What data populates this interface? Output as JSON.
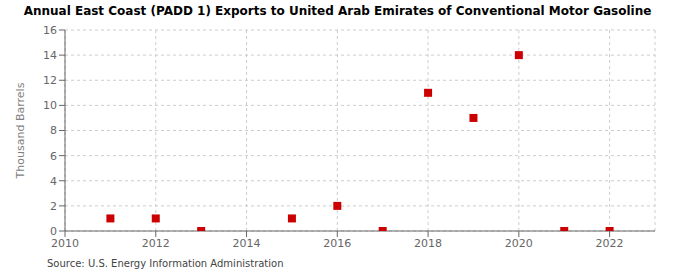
{
  "chart_data": {
    "type": "scatter",
    "title": "Annual East Coast (PADD 1) Exports to United Arab Emirates of Conventional Motor Gasoline",
    "ylabel": "Thousand Barrels",
    "annotations": [
      "Source: U.S. Energy Information Administration"
    ],
    "x": [
      2011,
      2012,
      2013,
      2015,
      2016,
      2017,
      2018,
      2019,
      2020,
      2021,
      2022
    ],
    "values": [
      1,
      1,
      0,
      1,
      2,
      0,
      11,
      9,
      14,
      0,
      0
    ],
    "color": "#cc0000",
    "marker": "square",
    "xlim": [
      2010,
      2023
    ],
    "xticks": [
      2010,
      2012,
      2014,
      2016,
      2018,
      2020,
      2022
    ],
    "ylim": [
      0,
      16
    ],
    "yticks": [
      0,
      2,
      4,
      6,
      8,
      10,
      12,
      14,
      16
    ],
    "grid": true
  }
}
